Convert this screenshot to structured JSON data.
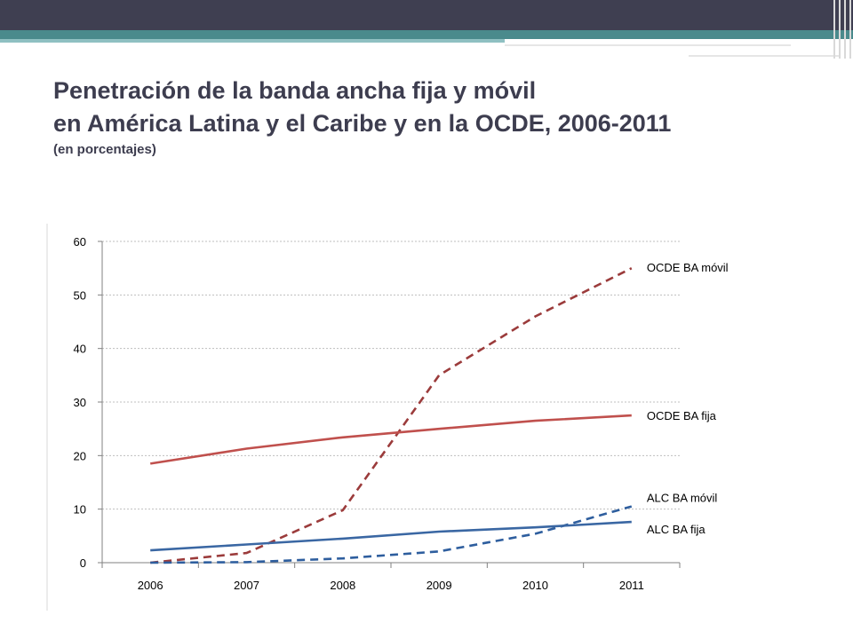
{
  "slide": {
    "title_line1": "Penetración de la banda ancha fija y móvil",
    "title_line2": "en América Latina y el Caribe y en la OCDE, 2006-2011",
    "subtitle": "(en porcentajes)",
    "colors": {
      "topbar": "#3f3f51",
      "accent": "#4a8a8c",
      "title": "#3d3d4f"
    }
  },
  "chart_data": {
    "type": "line",
    "title": "",
    "xlabel": "",
    "ylabel": "",
    "categories": [
      "2006",
      "2007",
      "2008",
      "2009",
      "2010",
      "2011"
    ],
    "ylim": [
      0,
      60
    ],
    "yticks": [
      0,
      10,
      20,
      30,
      40,
      50,
      60
    ],
    "grid": "horizontal-dashed",
    "series": [
      {
        "name": "OCDE BA móvil",
        "color": "#9b3b3b",
        "dashed": true,
        "values": [
          0,
          1.8,
          9.8,
          35,
          46,
          55
        ]
      },
      {
        "name": "OCDE BA fija",
        "color": "#c0504d",
        "dashed": false,
        "values": [
          18.5,
          21.3,
          23.4,
          25,
          26.5,
          27.5
        ]
      },
      {
        "name": "ALC BA móvil",
        "color": "#2e5e9e",
        "dashed": true,
        "values": [
          0,
          0.1,
          0.8,
          2.1,
          5.4,
          10.5
        ]
      },
      {
        "name": "ALC BA fija",
        "color": "#3a67a3",
        "dashed": false,
        "values": [
          2.3,
          3.4,
          4.5,
          5.8,
          6.6,
          7.6
        ]
      }
    ]
  }
}
